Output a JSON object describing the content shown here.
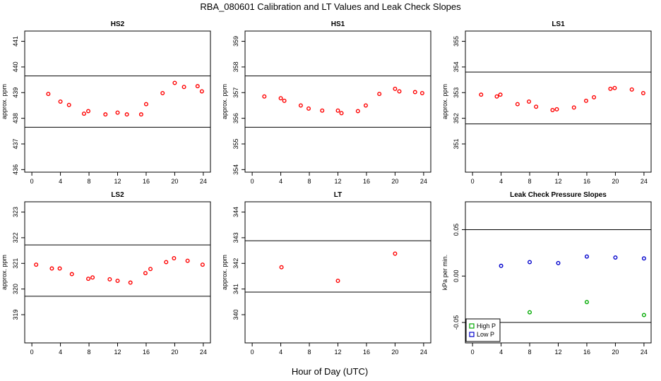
{
  "page": {
    "title": "RBA_080601  Calibration and LT Values and Leak Check Slopes",
    "xlabel": "Hour of Day (UTC)"
  },
  "chart_data": [
    {
      "id": "hs2",
      "type": "scatter",
      "title": "HS2",
      "ylabel": "approx. ppm",
      "xlim": [
        -1,
        25
      ],
      "ylim": [
        435.9,
        441.4
      ],
      "xticks": [
        0,
        4,
        8,
        12,
        16,
        20,
        24
      ],
      "yticks": [
        436,
        437,
        438,
        439,
        440,
        441
      ],
      "hlines": [
        437.65,
        439.65
      ],
      "series": [
        {
          "color": "#ff0000",
          "shape": "circle",
          "points": [
            [
              2.3,
              438.95
            ],
            [
              4.0,
              438.65
            ],
            [
              5.2,
              438.52
            ],
            [
              7.3,
              438.18
            ],
            [
              7.9,
              438.28
            ],
            [
              10.3,
              438.15
            ],
            [
              12.0,
              438.22
            ],
            [
              13.3,
              438.15
            ],
            [
              15.3,
              438.15
            ],
            [
              16.0,
              438.55
            ],
            [
              18.3,
              438.98
            ],
            [
              20.0,
              439.38
            ],
            [
              21.3,
              439.22
            ],
            [
              23.2,
              439.25
            ],
            [
              23.8,
              439.05
            ]
          ]
        }
      ]
    },
    {
      "id": "hs1",
      "type": "scatter",
      "title": "HS1",
      "ylabel": "approx. ppm",
      "xlim": [
        -1,
        25
      ],
      "ylim": [
        353.9,
        359.4
      ],
      "xticks": [
        0,
        4,
        8,
        12,
        16,
        20,
        24
      ],
      "yticks": [
        354,
        355,
        356,
        357,
        358,
        359
      ],
      "hlines": [
        355.65,
        357.65
      ],
      "series": [
        {
          "color": "#ff0000",
          "shape": "circle",
          "points": [
            [
              1.7,
              356.85
            ],
            [
              4.0,
              356.78
            ],
            [
              4.5,
              356.68
            ],
            [
              6.8,
              356.5
            ],
            [
              7.9,
              356.38
            ],
            [
              9.8,
              356.3
            ],
            [
              12.0,
              356.3
            ],
            [
              12.5,
              356.2
            ],
            [
              14.8,
              356.28
            ],
            [
              15.9,
              356.5
            ],
            [
              17.8,
              356.95
            ],
            [
              20.0,
              357.15
            ],
            [
              20.6,
              357.05
            ],
            [
              22.8,
              357.02
            ],
            [
              23.8,
              356.98
            ]
          ]
        }
      ]
    },
    {
      "id": "ls1",
      "type": "scatter",
      "title": "LS1",
      "ylabel": "approx. ppm",
      "xlim": [
        -1,
        25
      ],
      "ylim": [
        349.9,
        355.4
      ],
      "xticks": [
        0,
        4,
        8,
        12,
        16,
        20,
        24
      ],
      "yticks": [
        351,
        352,
        353,
        354,
        355
      ],
      "hlines": [
        351.78,
        353.8
      ],
      "series": [
        {
          "color": "#ff0000",
          "shape": "circle",
          "points": [
            [
              1.2,
              352.92
            ],
            [
              3.4,
              352.85
            ],
            [
              3.9,
              352.92
            ],
            [
              6.3,
              352.55
            ],
            [
              7.9,
              352.65
            ],
            [
              8.9,
              352.45
            ],
            [
              11.2,
              352.32
            ],
            [
              11.8,
              352.35
            ],
            [
              14.2,
              352.42
            ],
            [
              15.9,
              352.68
            ],
            [
              17.0,
              352.82
            ],
            [
              19.3,
              353.15
            ],
            [
              19.9,
              353.18
            ],
            [
              22.3,
              353.12
            ],
            [
              23.9,
              352.98
            ]
          ]
        }
      ]
    },
    {
      "id": "ls2",
      "type": "scatter",
      "title": "LS2",
      "ylabel": "approx. ppm",
      "xlim": [
        -1,
        25
      ],
      "ylim": [
        317.9,
        323.4
      ],
      "xticks": [
        0,
        4,
        8,
        12,
        16,
        20,
        24
      ],
      "yticks": [
        319,
        320,
        321,
        322,
        323
      ],
      "hlines": [
        319.72,
        321.72
      ],
      "series": [
        {
          "color": "#ff0000",
          "shape": "circle",
          "points": [
            [
              0.6,
              320.95
            ],
            [
              2.8,
              320.8
            ],
            [
              3.9,
              320.8
            ],
            [
              5.6,
              320.58
            ],
            [
              7.9,
              320.4
            ],
            [
              8.5,
              320.45
            ],
            [
              10.9,
              320.38
            ],
            [
              12.0,
              320.32
            ],
            [
              13.8,
              320.25
            ],
            [
              15.9,
              320.62
            ],
            [
              16.6,
              320.78
            ],
            [
              18.8,
              321.05
            ],
            [
              19.9,
              321.2
            ],
            [
              21.8,
              321.1
            ],
            [
              23.9,
              320.95
            ]
          ]
        }
      ]
    },
    {
      "id": "lt",
      "type": "scatter",
      "title": "LT",
      "ylabel": "approx. ppm",
      "xlim": [
        -1,
        25
      ],
      "ylim": [
        338.9,
        344.4
      ],
      "xticks": [
        0,
        4,
        8,
        12,
        16,
        20,
        24
      ],
      "yticks": [
        340,
        341,
        342,
        343,
        344
      ],
      "hlines": [
        340.88,
        342.88
      ],
      "series": [
        {
          "color": "#ff0000",
          "shape": "circle",
          "points": [
            [
              4.1,
              341.85
            ],
            [
              12.0,
              341.32
            ],
            [
              20.0,
              342.38
            ]
          ]
        }
      ]
    },
    {
      "id": "leak",
      "type": "scatter",
      "title": "Leak Check Pressure Slopes",
      "ylabel": "kPa per min.",
      "xlim": [
        -1,
        25
      ],
      "ylim": [
        -0.072,
        0.08
      ],
      "xticks": [
        0,
        4,
        8,
        12,
        16,
        20,
        24
      ],
      "yticks": [
        -0.05,
        0.0,
        0.05
      ],
      "ytick_labels": [
        "-0.05",
        "0.00",
        "0.05"
      ],
      "hlines": [
        -0.05,
        0.05
      ],
      "legend": {
        "position": "bottom-left",
        "entries": [
          "High P",
          "Low P"
        ]
      },
      "series": [
        {
          "name": "High P",
          "color": "#00aa00",
          "shape": "circle",
          "points": [
            [
              8.0,
              -0.039
            ],
            [
              16.0,
              -0.028
            ],
            [
              24.0,
              -0.042
            ]
          ]
        },
        {
          "name": "Low P",
          "color": "#0000cc",
          "shape": "circle",
          "points": [
            [
              4.0,
              0.011
            ],
            [
              8.0,
              0.015
            ],
            [
              12.0,
              0.014
            ],
            [
              16.0,
              0.021
            ],
            [
              20.0,
              0.02
            ],
            [
              24.0,
              0.019
            ]
          ]
        }
      ]
    }
  ]
}
